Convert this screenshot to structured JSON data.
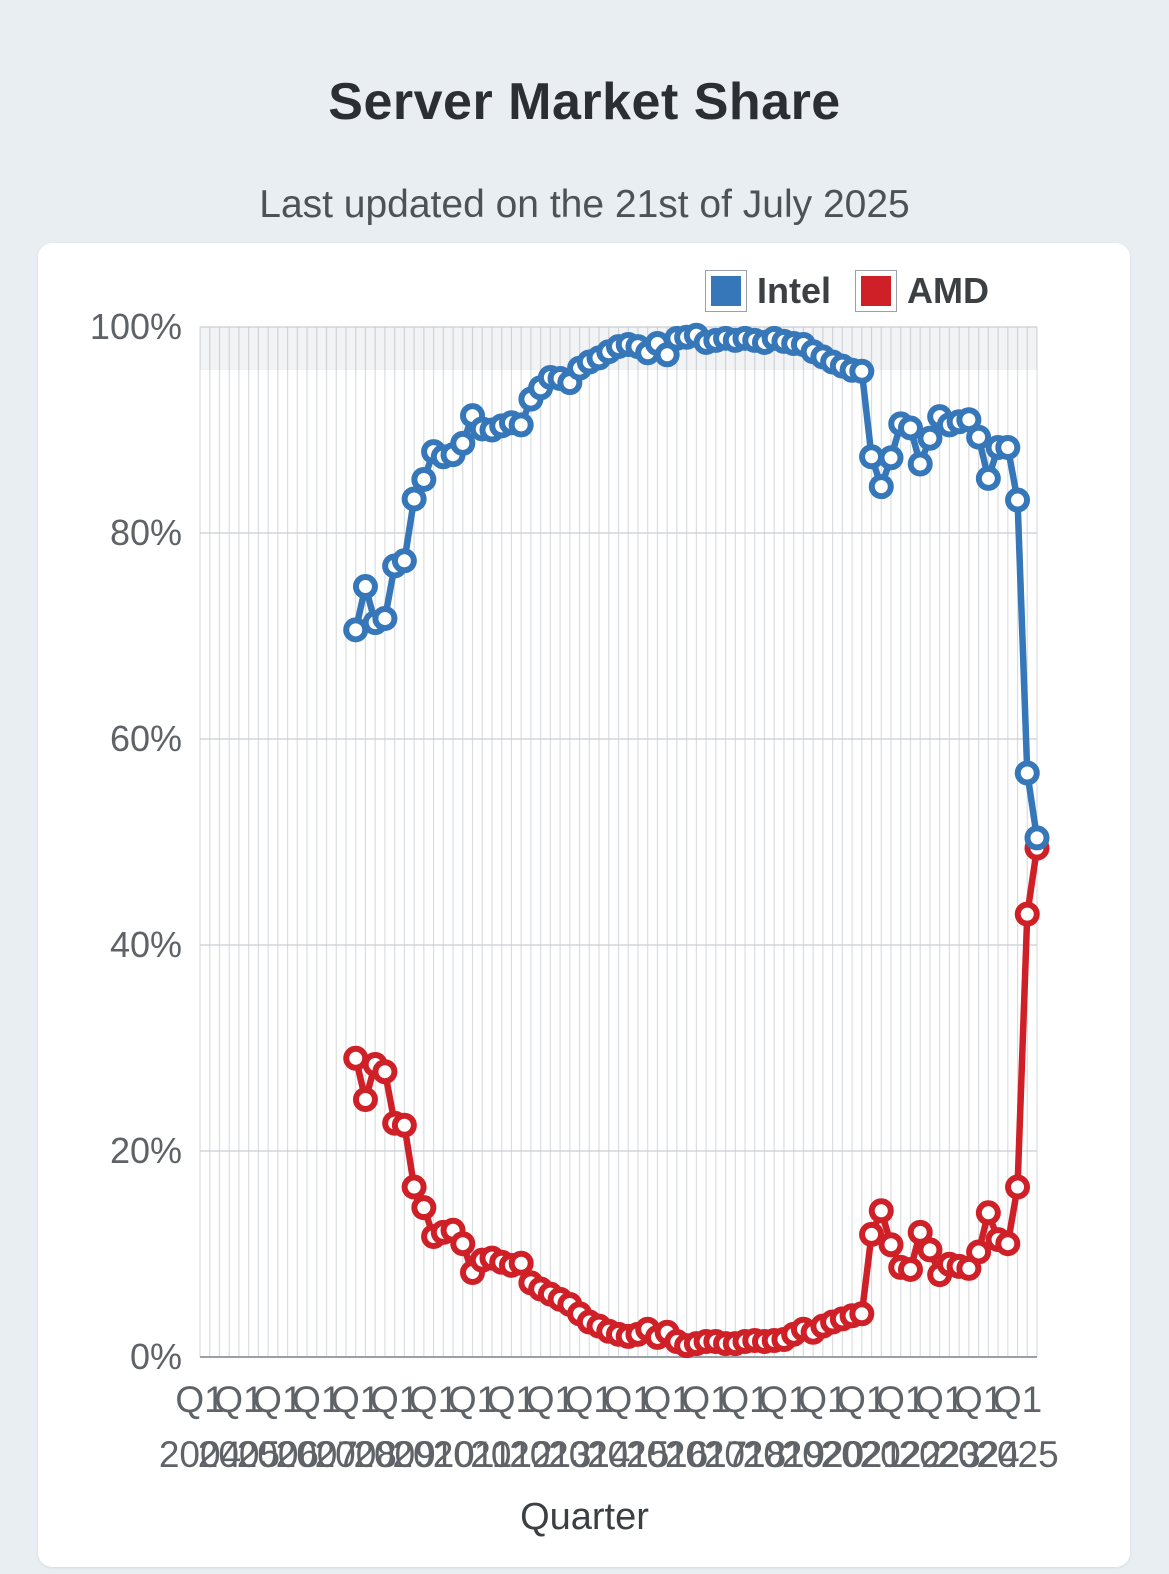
{
  "page": {
    "title": "Server Market Share",
    "subtitle": "Last updated on the 21st of July 2025"
  },
  "legend": {
    "items": [
      {
        "label": "Intel",
        "color": "#3577b9"
      },
      {
        "label": "AMD",
        "color": "#d02027"
      }
    ]
  },
  "chart_data": {
    "type": "line",
    "title": "Server Market Share",
    "xlabel": "Quarter",
    "ylabel": "",
    "ylim": [
      0,
      100
    ],
    "y_ticks": [
      "0%",
      "20%",
      "40%",
      "60%",
      "80%",
      "100%"
    ],
    "x_ticks": [
      "Q1 2004",
      "Q1 2005",
      "Q1 2006",
      "Q1 2007",
      "Q1 2008",
      "Q1 2009",
      "Q1 2010",
      "Q1 2011",
      "Q1 2012",
      "Q1 2013",
      "Q1 2014",
      "Q1 2015",
      "Q1 2016",
      "Q1 2017",
      "Q1 2018",
      "Q1 2019",
      "Q1 2020",
      "Q1 2021",
      "Q1 2022",
      "Q1 2023",
      "Q1 2024",
      "Q1 2025"
    ],
    "axis_start_quarter": "Q1 2004",
    "axis_end_quarter": "Q3 2025",
    "grid": "vertical line per quarter, horizontal line per 20%",
    "legend_position": "top-right",
    "categories": [
      "Q1 2008",
      "Q2 2008",
      "Q3 2008",
      "Q4 2008",
      "Q1 2009",
      "Q2 2009",
      "Q3 2009",
      "Q4 2009",
      "Q1 2010",
      "Q2 2010",
      "Q3 2010",
      "Q4 2010",
      "Q1 2011",
      "Q2 2011",
      "Q3 2011",
      "Q4 2011",
      "Q1 2012",
      "Q2 2012",
      "Q3 2012",
      "Q4 2012",
      "Q1 2013",
      "Q2 2013",
      "Q3 2013",
      "Q4 2013",
      "Q1 2014",
      "Q2 2014",
      "Q3 2014",
      "Q4 2014",
      "Q1 2015",
      "Q2 2015",
      "Q3 2015",
      "Q4 2015",
      "Q1 2016",
      "Q2 2016",
      "Q3 2016",
      "Q4 2016",
      "Q1 2017",
      "Q2 2017",
      "Q3 2017",
      "Q4 2017",
      "Q1 2018",
      "Q2 2018",
      "Q3 2018",
      "Q4 2018",
      "Q1 2019",
      "Q2 2019",
      "Q3 2019",
      "Q4 2019",
      "Q1 2020",
      "Q2 2020",
      "Q3 2020",
      "Q4 2020",
      "Q1 2021",
      "Q2 2021",
      "Q3 2021",
      "Q4 2021",
      "Q1 2022",
      "Q2 2022",
      "Q3 2022",
      "Q4 2022",
      "Q1 2023",
      "Q2 2023",
      "Q3 2023",
      "Q4 2023",
      "Q1 2024",
      "Q2 2024",
      "Q3 2024",
      "Q4 2024",
      "Q1 2025",
      "Q2 2025",
      "Q3 2025"
    ],
    "series": [
      {
        "name": "Intel",
        "color": "#3577b9",
        "values": [
          70.6,
          74.8,
          71.3,
          71.7,
          76.8,
          77.3,
          83.3,
          85.2,
          87.9,
          87.4,
          87.6,
          88.7,
          91.4,
          90.1,
          90.0,
          90.4,
          90.7,
          90.5,
          93.0,
          94.1,
          95.1,
          95.0,
          94.6,
          96.0,
          96.6,
          97.0,
          97.6,
          98.1,
          98.3,
          98.1,
          97.5,
          98.4,
          97.3,
          98.9,
          99.0,
          99.2,
          98.5,
          98.7,
          98.9,
          98.7,
          98.9,
          98.7,
          98.5,
          98.9,
          98.6,
          98.4,
          98.3,
          97.6,
          97.1,
          96.6,
          96.2,
          95.8,
          95.7,
          87.4,
          84.5,
          87.3,
          90.6,
          90.2,
          86.7,
          89.2,
          91.3,
          90.5,
          90.8,
          91.0,
          89.3,
          85.3,
          88.3,
          88.3,
          83.2,
          56.7,
          50.4
        ]
      },
      {
        "name": "AMD",
        "color": "#d02027",
        "values": [
          29.0,
          25.0,
          28.4,
          27.7,
          22.7,
          22.5,
          16.5,
          14.5,
          11.7,
          12.1,
          12.3,
          11.0,
          8.2,
          9.4,
          9.6,
          9.2,
          8.9,
          9.1,
          7.2,
          6.6,
          6.1,
          5.6,
          5.1,
          4.2,
          3.4,
          3.0,
          2.5,
          2.2,
          2.0,
          2.2,
          2.7,
          1.9,
          2.4,
          1.5,
          1.1,
          1.3,
          1.5,
          1.5,
          1.3,
          1.3,
          1.5,
          1.6,
          1.5,
          1.6,
          1.7,
          2.2,
          2.7,
          2.4,
          3.0,
          3.4,
          3.7,
          4.0,
          4.2,
          11.9,
          14.2,
          10.9,
          8.7,
          8.5,
          12.1,
          10.4,
          8.0,
          9.0,
          8.8,
          8.6,
          10.2,
          14.0,
          11.4,
          11.0,
          16.5,
          43.0,
          49.4
        ]
      }
    ]
  }
}
